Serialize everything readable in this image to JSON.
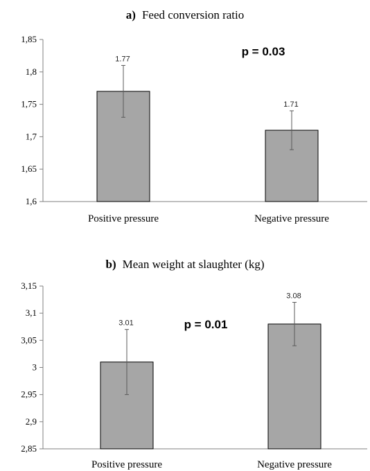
{
  "chart_data": [
    {
      "type": "bar",
      "title_prefix": "a)",
      "title": "Feed conversion ratio",
      "categories": [
        "Positive pressure",
        "Negative pressure"
      ],
      "values": [
        1.77,
        1.71
      ],
      "errors": [
        0.04,
        0.03
      ],
      "data_labels": [
        "1.77",
        "1.71"
      ],
      "ylim": [
        1.6,
        1.85
      ],
      "yticks": [
        1.6,
        1.65,
        1.7,
        1.75,
        1.8,
        1.85
      ],
      "ytick_labels": [
        "1,6",
        "1,65",
        "1,7",
        "1,75",
        "1,8",
        "1,85"
      ],
      "annotation": "p = 0.03",
      "bar_color": "#a6a6a6",
      "grid": false
    },
    {
      "type": "bar",
      "title_prefix": "b)",
      "title": "Mean weight  at slaughter (kg)",
      "categories": [
        "Positive pressure",
        "Negative pressure"
      ],
      "values": [
        3.01,
        3.08
      ],
      "errors": [
        0.06,
        0.04
      ],
      "data_labels": [
        "3.01",
        "3.08"
      ],
      "ylim": [
        2.85,
        3.15
      ],
      "yticks": [
        2.85,
        2.9,
        2.95,
        3.0,
        3.05,
        3.1,
        3.15
      ],
      "ytick_labels": [
        "2,85",
        "2,9",
        "2,95",
        "3",
        "3,05",
        "3,1",
        "3,15"
      ],
      "annotation": "p = 0.01",
      "bar_color": "#a6a6a6",
      "grid": false
    }
  ]
}
